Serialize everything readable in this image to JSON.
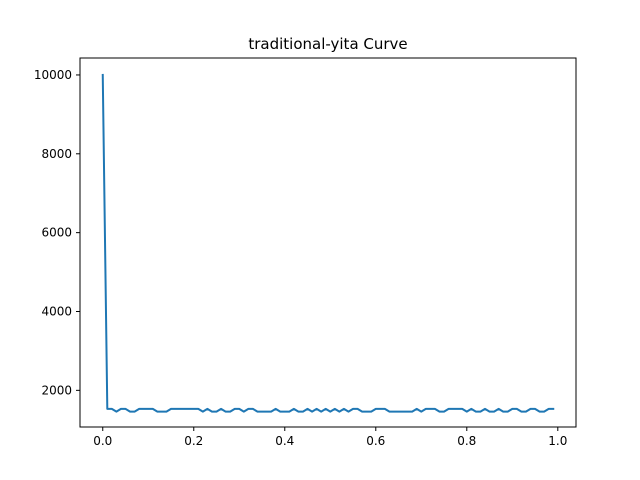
{
  "chart_data": {
    "type": "line",
    "title": "traditional-yita Curve",
    "xlabel": "",
    "ylabel": "",
    "xlim": [
      -0.05,
      1.04
    ],
    "ylim": [
      1070,
      10430
    ],
    "x_ticks": [
      0.0,
      0.2,
      0.4,
      0.6,
      0.8,
      1.0
    ],
    "x_tick_labels": [
      "0.0",
      "0.2",
      "0.4",
      "0.6",
      "0.8",
      "1.0"
    ],
    "y_ticks": [
      2000,
      4000,
      6000,
      8000,
      10000
    ],
    "y_tick_labels": [
      "2000",
      "4000",
      "6000",
      "8000",
      "10000"
    ],
    "grid": false,
    "legend": false,
    "series": [
      {
        "color": "#1f77b4",
        "x": [
          0.0,
          0.01,
          0.02,
          0.03,
          0.04,
          0.05,
          0.06,
          0.07,
          0.08,
          0.09,
          0.1,
          0.11,
          0.12,
          0.13,
          0.14,
          0.15,
          0.16,
          0.17,
          0.18,
          0.19,
          0.2,
          0.21,
          0.22,
          0.23,
          0.24,
          0.25,
          0.26,
          0.27,
          0.28,
          0.29,
          0.3,
          0.31,
          0.32,
          0.33,
          0.34,
          0.35,
          0.36,
          0.37,
          0.38,
          0.39,
          0.4,
          0.41,
          0.42,
          0.43,
          0.44,
          0.45,
          0.46,
          0.47,
          0.48,
          0.49,
          0.5,
          0.51,
          0.52,
          0.53,
          0.54,
          0.55,
          0.56,
          0.57,
          0.58,
          0.59,
          0.6,
          0.61,
          0.62,
          0.63,
          0.64,
          0.65,
          0.66,
          0.67,
          0.68,
          0.69,
          0.7,
          0.71,
          0.72,
          0.73,
          0.74,
          0.75,
          0.76,
          0.77,
          0.78,
          0.79,
          0.8,
          0.81,
          0.82,
          0.83,
          0.84,
          0.85,
          0.86,
          0.87,
          0.88,
          0.89,
          0.9,
          0.91,
          0.92,
          0.93,
          0.94,
          0.95,
          0.96,
          0.97,
          0.98,
          0.99
        ],
        "values": [
          10000,
          1530,
          1530,
          1460,
          1530,
          1530,
          1460,
          1460,
          1530,
          1530,
          1530,
          1530,
          1460,
          1460,
          1460,
          1530,
          1530,
          1530,
          1530,
          1530,
          1530,
          1530,
          1460,
          1530,
          1460,
          1460,
          1530,
          1460,
          1460,
          1530,
          1530,
          1460,
          1530,
          1530,
          1460,
          1460,
          1460,
          1460,
          1530,
          1460,
          1460,
          1460,
          1530,
          1460,
          1460,
          1530,
          1460,
          1530,
          1460,
          1530,
          1460,
          1530,
          1460,
          1530,
          1460,
          1530,
          1530,
          1460,
          1460,
          1460,
          1530,
          1530,
          1530,
          1460,
          1460,
          1460,
          1460,
          1460,
          1460,
          1530,
          1460,
          1530,
          1530,
          1530,
          1460,
          1460,
          1530,
          1530,
          1530,
          1530,
          1460,
          1530,
          1460,
          1460,
          1530,
          1460,
          1460,
          1530,
          1460,
          1460,
          1530,
          1530,
          1460,
          1460,
          1530,
          1530,
          1460,
          1460,
          1530,
          1530
        ]
      }
    ]
  }
}
